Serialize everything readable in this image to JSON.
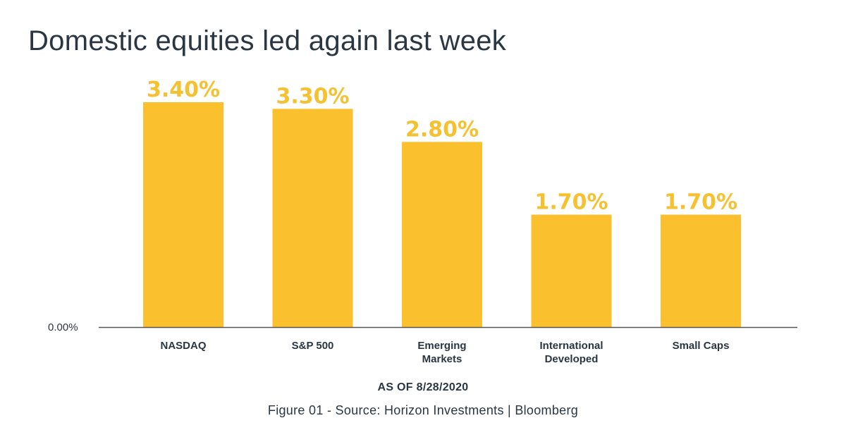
{
  "title": "Domestic equities led again last week",
  "as_of": "AS OF 8/28/2020",
  "source": "Figure 01 - Source: Horizon Investments | Bloomberg",
  "colors": {
    "bar": "#fbc02d",
    "data_label": "#f6c130",
    "text": "#2a3642",
    "axis": "#555555"
  },
  "chart_data": {
    "type": "bar",
    "title": "Domestic equities led again last week",
    "xlabel": "",
    "ylabel": "",
    "y_tick_label": "0.00%",
    "ylim": [
      0,
      3.4
    ],
    "grid": false,
    "categories": [
      [
        "NASDAQ"
      ],
      [
        "S&P 500"
      ],
      [
        "Emerging",
        "Markets"
      ],
      [
        "International",
        "Developed"
      ],
      [
        "Small Caps"
      ]
    ],
    "values": [
      3.4,
      3.3,
      2.8,
      1.7,
      1.7
    ],
    "value_labels": [
      "3.40%",
      "3.30%",
      "2.80%",
      "1.70%",
      "1.70%"
    ]
  }
}
